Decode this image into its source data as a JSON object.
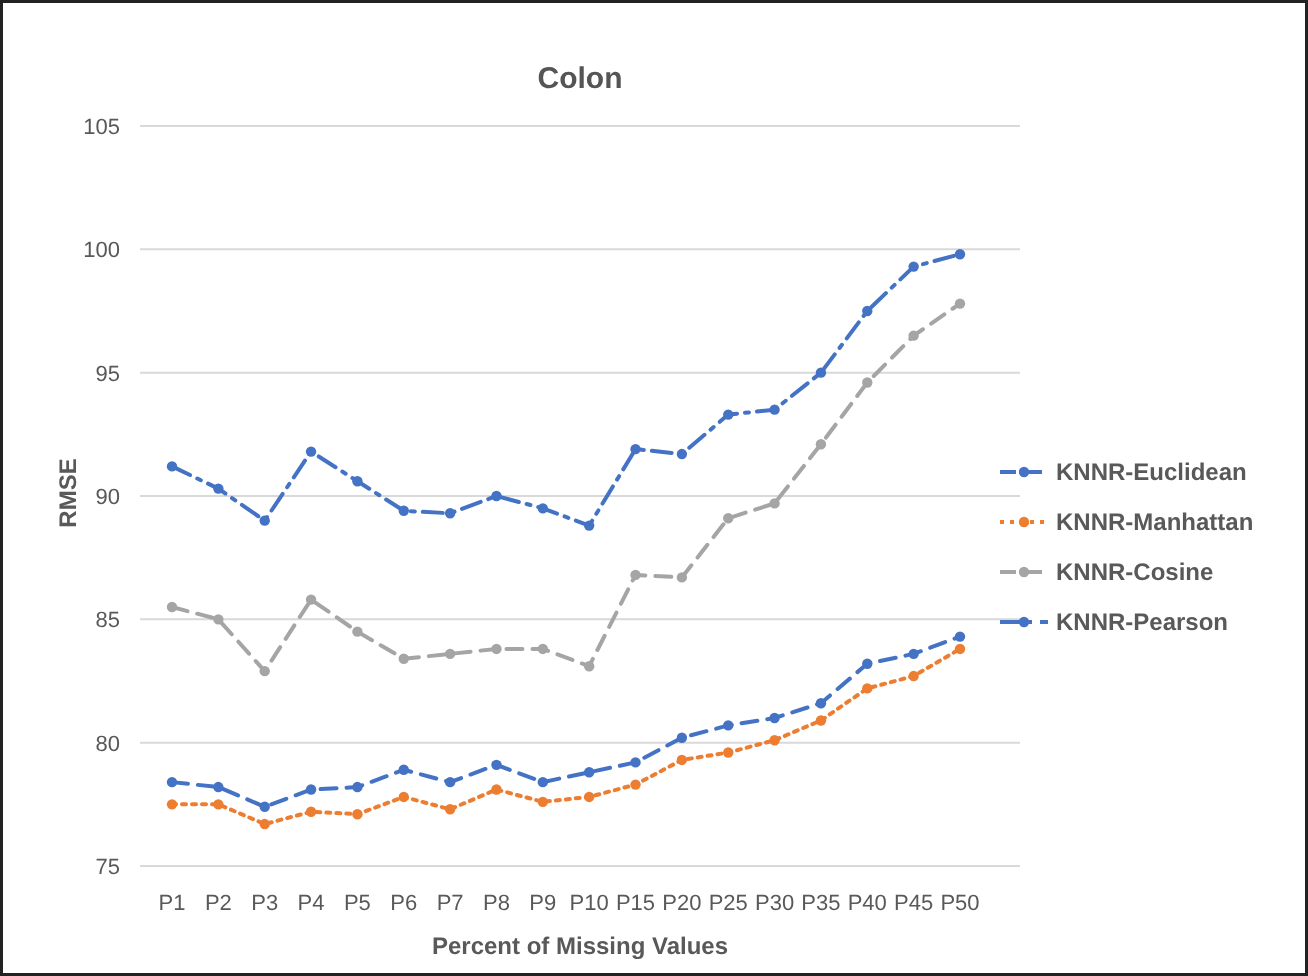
{
  "chart_data": {
    "type": "line",
    "title": "Colon",
    "xlabel": "Percent of Missing Values",
    "ylabel": "RMSE",
    "categories": [
      "P1",
      "P2",
      "P3",
      "P4",
      "P5",
      "P6",
      "P7",
      "P8",
      "P9",
      "P10",
      "P15",
      "P20",
      "P25",
      "P30",
      "P35",
      "P40",
      "P45",
      "P50"
    ],
    "ylim": [
      75,
      105
    ],
    "yticks": [
      75,
      80,
      85,
      90,
      95,
      100,
      105
    ],
    "grid": "y",
    "legend": "right",
    "marker": "circle",
    "series": [
      {
        "name": "KNNR-Euclidean",
        "color": "#4472c4",
        "line_style": "dashed",
        "values": [
          78.4,
          78.2,
          77.4,
          78.1,
          78.2,
          78.9,
          78.4,
          79.1,
          78.4,
          78.8,
          79.2,
          80.2,
          80.7,
          81.0,
          81.6,
          83.2,
          83.6,
          84.3
        ]
      },
      {
        "name": "KNNR-Manhattan",
        "color": "#ed7d31",
        "line_style": "dotted",
        "values": [
          77.5,
          77.5,
          76.7,
          77.2,
          77.1,
          77.8,
          77.3,
          78.1,
          77.6,
          77.8,
          78.3,
          79.3,
          79.6,
          80.1,
          80.9,
          82.2,
          82.7,
          83.8
        ]
      },
      {
        "name": "KNNR-Cosine",
        "color": "#a5a5a5",
        "line_style": "dashed",
        "values": [
          85.5,
          85.0,
          82.9,
          85.8,
          84.5,
          83.4,
          83.6,
          83.8,
          83.8,
          83.1,
          86.8,
          86.7,
          89.1,
          89.7,
          92.1,
          94.6,
          96.5,
          97.8
        ]
      },
      {
        "name": "KNNR-Pearson",
        "color": "#4472c4",
        "line_style": "dashdot",
        "values": [
          91.2,
          90.3,
          89.0,
          91.8,
          90.6,
          89.4,
          89.3,
          90.0,
          89.5,
          88.8,
          91.9,
          91.7,
          93.3,
          93.5,
          95.0,
          97.5,
          99.3,
          99.8
        ]
      }
    ]
  }
}
